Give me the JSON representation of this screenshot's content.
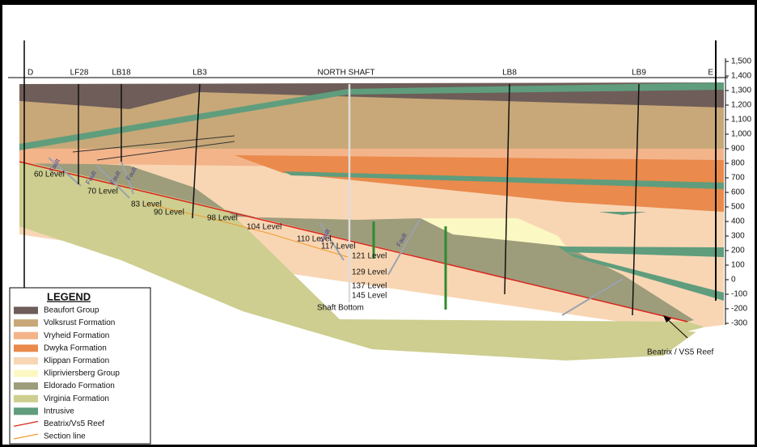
{
  "section": {
    "boreholes": [
      "D",
      "LF28",
      "LB18",
      "LB3",
      "NORTH SHAFT",
      "LB8",
      "LB9",
      "E"
    ],
    "elevations": [
      "1,500",
      "1,400",
      "1,300",
      "1,200",
      "1,100",
      "1,000",
      "900",
      "800",
      "700",
      "600",
      "500",
      "400",
      "300",
      "200",
      "100",
      "0",
      "-100",
      "-200",
      "-300"
    ],
    "levels": [
      "60 Level",
      "70 Level",
      "83 Level",
      "90 Level",
      "98 Level",
      "104 Level",
      "110 Level",
      "117 Level",
      "121 Level",
      "129 Level",
      "137 Level",
      "145 Level"
    ],
    "shaft_bottom": "Shaft Bottom",
    "faults": [
      "Fault",
      "Fault",
      "Fault",
      "Fault",
      "Fault",
      "Fault"
    ],
    "annotation": "Beatrix / VS5 Reef"
  },
  "legend": {
    "title": "LEGEND",
    "items": [
      "Beaufort Group",
      "Volksrust Formation",
      "Vryheid Formation",
      "Dwyka Formation",
      "Klippan Formation",
      "Klipriviersberg Group",
      "Eldorado Formation",
      "Virginia Formation",
      "Intrusive",
      "Beatrix/Vs5 Reef",
      "Section line"
    ]
  }
}
